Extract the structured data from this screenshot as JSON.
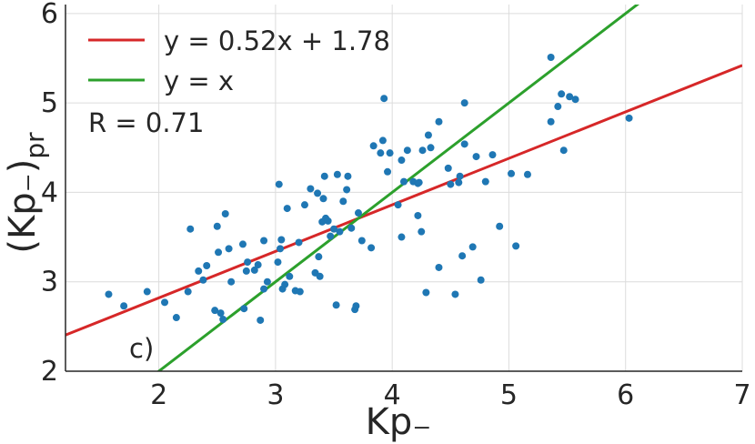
{
  "chart_data": {
    "type": "scatter",
    "xlabel": "Kp₋",
    "ylabel_main": "(Kp₋)",
    "ylabel_sub": "pr",
    "xlim": [
      1.2,
      7.0
    ],
    "ylim": [
      2.0,
      6.1
    ],
    "xticks": [
      2,
      3,
      4,
      5,
      6,
      7
    ],
    "yticks": [
      2,
      3,
      4,
      5,
      6
    ],
    "grid": true,
    "legend_position": "top-left",
    "point_color": "#1f77b4",
    "series": [
      {
        "values": [
          [
            1.57,
            2.86
          ],
          [
            1.7,
            2.73
          ],
          [
            1.9,
            2.89
          ],
          [
            2.05,
            2.77
          ],
          [
            2.15,
            2.6
          ],
          [
            2.25,
            2.89
          ],
          [
            2.27,
            3.59
          ],
          [
            2.34,
            3.12
          ],
          [
            2.38,
            3.02
          ],
          [
            2.41,
            3.18
          ],
          [
            2.48,
            2.68
          ],
          [
            2.5,
            3.62
          ],
          [
            2.51,
            3.33
          ],
          [
            2.53,
            2.65
          ],
          [
            2.55,
            2.58
          ],
          [
            2.57,
            3.76
          ],
          [
            2.6,
            3.37
          ],
          [
            2.62,
            3.0
          ],
          [
            2.72,
            3.42
          ],
          [
            2.73,
            2.7
          ],
          [
            2.75,
            3.12
          ],
          [
            2.76,
            3.22
          ],
          [
            2.82,
            3.13
          ],
          [
            2.85,
            3.19
          ],
          [
            2.87,
            2.57
          ],
          [
            2.9,
            3.46
          ],
          [
            2.9,
            2.92
          ],
          [
            2.93,
            3.0
          ],
          [
            3.02,
            3.22
          ],
          [
            3.03,
            4.09
          ],
          [
            3.04,
            3.37
          ],
          [
            3.05,
            3.47
          ],
          [
            3.06,
            2.92
          ],
          [
            3.08,
            2.97
          ],
          [
            3.1,
            3.82
          ],
          [
            3.12,
            3.06
          ],
          [
            3.17,
            2.9
          ],
          [
            3.2,
            3.44
          ],
          [
            3.21,
            2.89
          ],
          [
            3.25,
            3.86
          ],
          [
            3.3,
            4.04
          ],
          [
            3.34,
            3.1
          ],
          [
            3.36,
            3.99
          ],
          [
            3.37,
            3.28
          ],
          [
            3.38,
            3.06
          ],
          [
            3.4,
            3.67
          ],
          [
            3.41,
            3.93
          ],
          [
            3.42,
            4.18
          ],
          [
            3.43,
            3.71
          ],
          [
            3.45,
            3.68
          ],
          [
            3.47,
            3.51
          ],
          [
            3.5,
            3.59
          ],
          [
            3.52,
            2.74
          ],
          [
            3.53,
            4.2
          ],
          [
            3.55,
            3.56
          ],
          [
            3.58,
            3.9
          ],
          [
            3.61,
            4.03
          ],
          [
            3.62,
            4.18
          ],
          [
            3.65,
            3.6
          ],
          [
            3.68,
            2.69
          ],
          [
            3.69,
            2.73
          ],
          [
            3.71,
            3.77
          ],
          [
            3.74,
            3.46
          ],
          [
            3.82,
            3.38
          ],
          [
            3.84,
            4.52
          ],
          [
            3.9,
            4.44
          ],
          [
            3.92,
            4.58
          ],
          [
            3.93,
            5.05
          ],
          [
            3.96,
            4.23
          ],
          [
            3.98,
            4.44
          ],
          [
            4.05,
            3.86
          ],
          [
            4.08,
            3.5
          ],
          [
            4.08,
            4.36
          ],
          [
            4.1,
            4.12
          ],
          [
            4.13,
            4.47
          ],
          [
            4.18,
            4.12
          ],
          [
            4.22,
            4.1
          ],
          [
            4.22,
            3.74
          ],
          [
            4.23,
            4.11
          ],
          [
            4.25,
            3.56
          ],
          [
            4.26,
            4.47
          ],
          [
            4.29,
            2.88
          ],
          [
            4.31,
            4.64
          ],
          [
            4.33,
            4.5
          ],
          [
            4.4,
            4.79
          ],
          [
            4.4,
            3.16
          ],
          [
            4.48,
            4.27
          ],
          [
            4.5,
            4.09
          ],
          [
            4.54,
            2.86
          ],
          [
            4.57,
            4.11
          ],
          [
            4.58,
            4.18
          ],
          [
            4.6,
            3.29
          ],
          [
            4.62,
            4.54
          ],
          [
            4.62,
            5.0
          ],
          [
            4.69,
            3.39
          ],
          [
            4.72,
            4.4
          ],
          [
            4.76,
            3.02
          ],
          [
            4.8,
            4.12
          ],
          [
            4.86,
            4.42
          ],
          [
            4.92,
            3.62
          ],
          [
            5.02,
            4.21
          ],
          [
            5.06,
            3.4
          ],
          [
            5.16,
            4.2
          ],
          [
            5.36,
            5.51
          ],
          [
            5.36,
            4.79
          ],
          [
            5.42,
            4.96
          ],
          [
            5.45,
            5.1
          ],
          [
            5.47,
            4.47
          ],
          [
            5.52,
            5.07
          ],
          [
            5.57,
            5.04
          ],
          [
            6.03,
            4.83
          ]
        ]
      }
    ],
    "lines": [
      {
        "label": "y = 0.52x + 1.78",
        "slope": 0.52,
        "intercept": 1.78,
        "color": "#d62728"
      },
      {
        "label": "y = x",
        "slope": 1.0,
        "intercept": 0.0,
        "color": "#2ca02c"
      }
    ],
    "annotations": [
      "R = 0.71",
      "c)"
    ]
  }
}
